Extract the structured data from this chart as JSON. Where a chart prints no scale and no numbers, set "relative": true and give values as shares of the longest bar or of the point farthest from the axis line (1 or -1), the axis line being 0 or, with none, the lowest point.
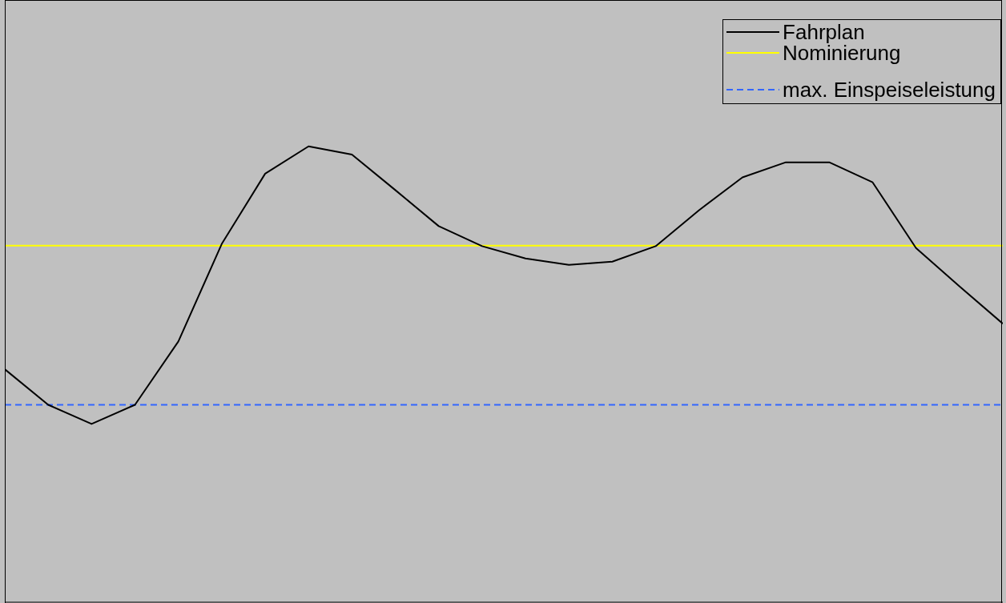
{
  "chart_data": {
    "type": "line",
    "relative": true,
    "grid": false,
    "legend": "top right",
    "marker": "none",
    "categories": [
      null,
      null,
      null,
      null,
      null,
      null,
      null,
      null,
      null,
      null,
      null,
      null,
      null,
      null,
      null,
      null,
      null,
      null,
      null,
      null,
      null,
      null,
      null,
      null
    ],
    "series": [
      {
        "name": "Fahrplan",
        "color": "#000000",
        "values": [
          0.511,
          0.433,
          0.391,
          0.433,
          0.572,
          0.786,
          0.94,
          1,
          0.982,
          0.904,
          0.825,
          0.781,
          0.754,
          0.74,
          0.747,
          0.781,
          0.86,
          0.932,
          0.965,
          0.965,
          0.921,
          0.777,
          0.693,
          0.611
        ]
      }
    ],
    "ref_lines": [
      {
        "axis": "y",
        "value": 0.782,
        "label": "Nominierung",
        "color": "#ffff00",
        "line_style": "solid"
      },
      {
        "axis": "y",
        "value": 0.433,
        "label": "max. Einspeiseleistung",
        "color": "#3366ff",
        "line_style": "dashed"
      }
    ]
  }
}
